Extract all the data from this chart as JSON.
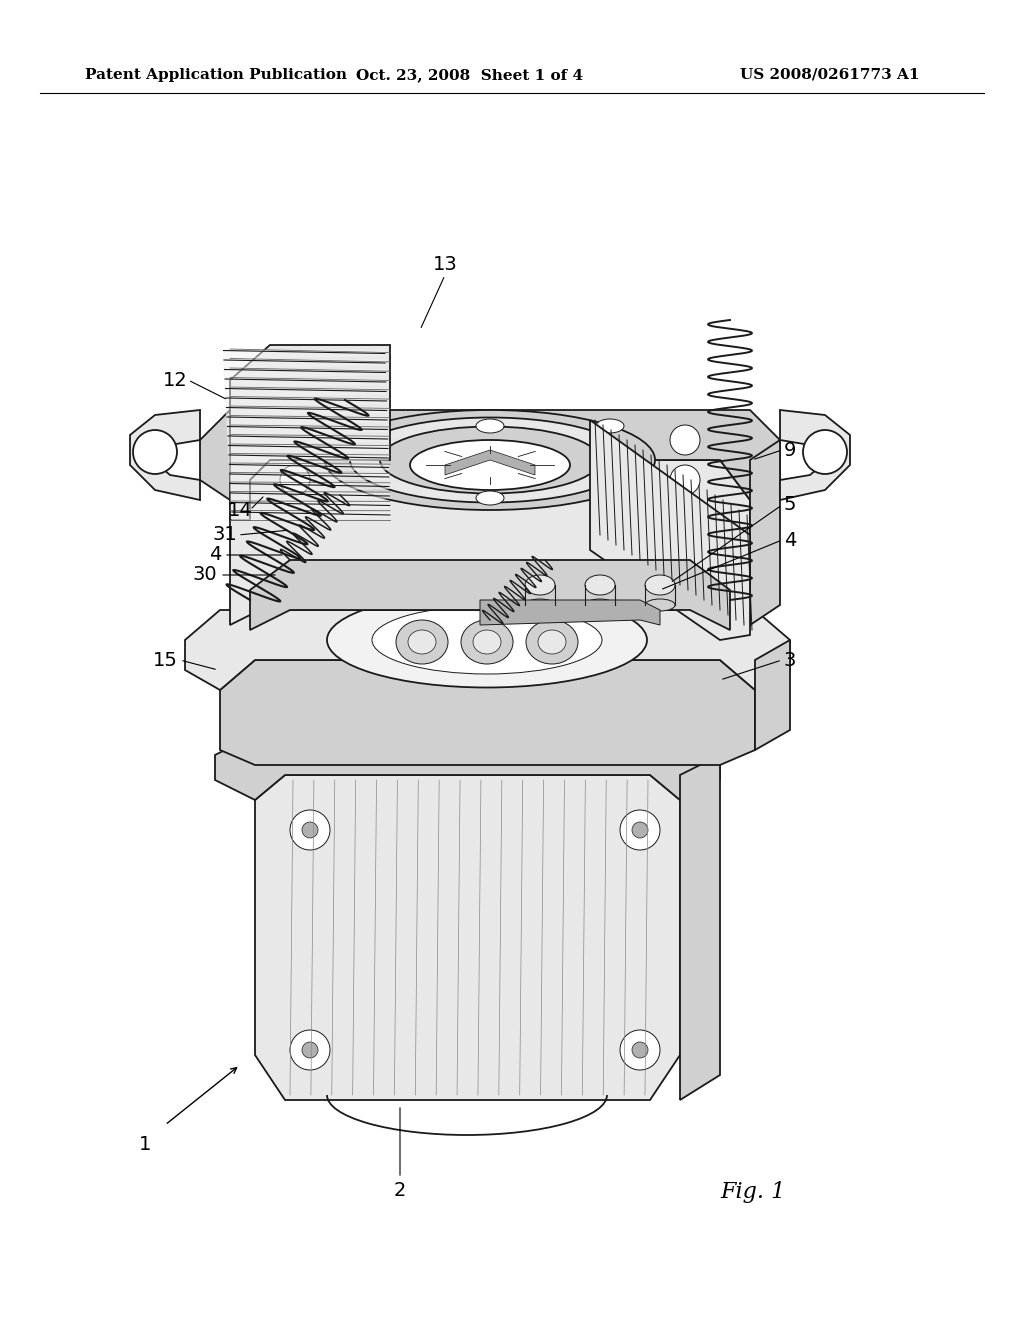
{
  "background_color": "#ffffff",
  "header_left": "Patent Application Publication",
  "header_center": "Oct. 23, 2008  Sheet 1 of 4",
  "header_right": "US 2008/0261773 A1",
  "header_fontsize": 11,
  "figure_label": "Fig. 1",
  "figure_label_fontsize": 16,
  "line_color": "#1a1a1a",
  "fill_light": "#e8e8e8",
  "fill_mid": "#d0d0d0",
  "fill_dark": "#b0b0b0",
  "fill_very_light": "#f2f2f2"
}
